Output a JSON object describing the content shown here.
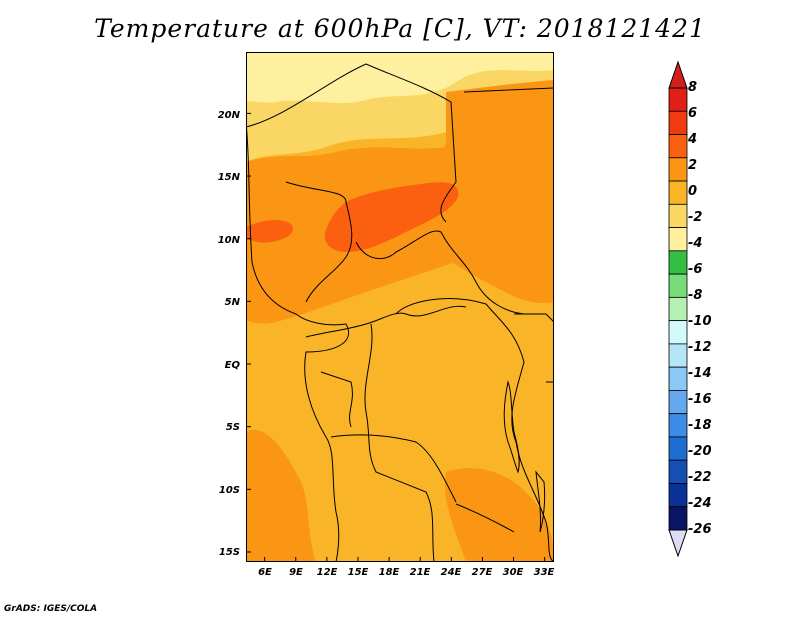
{
  "title": "Temperature at 600hPa [C], VT: 2018121421",
  "credit": "GrADS: IGES/COLA",
  "map": {
    "lat_labels": [
      "20N",
      "15N",
      "10N",
      "5N",
      "EQ",
      "5S",
      "10S",
      "15S"
    ],
    "lat_values": [
      20,
      15,
      10,
      5,
      0,
      -5,
      -10,
      -15
    ],
    "lon_labels": [
      "6E",
      "9E",
      "12E",
      "15E",
      "18E",
      "21E",
      "24E",
      "27E",
      "30E",
      "33E"
    ],
    "lon_values": [
      6,
      9,
      12,
      15,
      18,
      21,
      24,
      27,
      30,
      33
    ],
    "lat_range": [
      -15.8,
      24.9
    ],
    "lon_range": [
      4.2,
      33.9
    ]
  },
  "colorbar": {
    "labels": [
      "8",
      "6",
      "4",
      "2",
      "0",
      "-2",
      "-4",
      "-6",
      "-8",
      "-10",
      "-12",
      "-14",
      "-16",
      "-18",
      "-20",
      "-22",
      "-24",
      "-26"
    ],
    "colors": [
      "#e02016",
      "#f03a10",
      "#fa6010",
      "#fa9614",
      "#fab428",
      "#fad764",
      "#fff0a0",
      "#32bf42",
      "#78dc78",
      "#b4f0b4",
      "#d2fafa",
      "#b4e6fa",
      "#8cc8f5",
      "#64a8f0",
      "#3c8ce8",
      "#1e6ed2",
      "#1450b4",
      "#0a3296",
      "#0a1464"
    ],
    "top_arrow_color": "#d21e1e",
    "bottom_arrow_color": "#dcdcf5"
  },
  "fill_colors": {
    "lightest": "#fff0a0",
    "light": "#fad764",
    "mid": "#fab428",
    "warm": "#fa9614",
    "hot": "#fa6010"
  }
}
